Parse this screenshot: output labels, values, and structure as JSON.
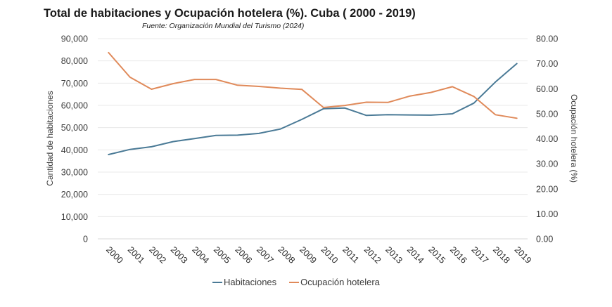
{
  "chart_data": {
    "type": "line",
    "title": "Total de habitaciones y Ocupación hotelera (%). Cuba (  2000 - 2019)",
    "subtitle": "Fuente: Organización Mundial del Turismo (2024)",
    "xlabel": "",
    "ylabel_left": "Cantidad de habitaciones",
    "ylabel_right": "Ocupación hotelera (%)",
    "x": [
      "2000",
      "2001",
      "2002",
      "2003",
      "2004",
      "2005",
      "2006",
      "2007",
      "2008",
      "2009",
      "2010",
      "2011",
      "2012",
      "2013",
      "2014",
      "2015",
      "2016",
      "2017",
      "2018",
      "2019"
    ],
    "ylim_left": [
      0,
      90000
    ],
    "ylim_right": [
      0,
      80
    ],
    "yticks_left": [
      "0",
      "10,000",
      "20,000",
      "30,000",
      "40,000",
      "50,000",
      "60,000",
      "70,000",
      "80,000",
      "90,000"
    ],
    "yticks_right": [
      "0.00",
      "10.00",
      "20.00",
      "30.00",
      "40.00",
      "50.00",
      "60.00",
      "70.00",
      "80.00"
    ],
    "grid": true,
    "legend_position": "bottom",
    "series": [
      {
        "name": "Habitaciones",
        "axis": "left",
        "color": "#4a7a96",
        "values": [
          37900,
          40200,
          41400,
          43700,
          45100,
          46500,
          46600,
          47400,
          49400,
          53700,
          58500,
          58800,
          55500,
          55800,
          55700,
          55600,
          56200,
          61000,
          70500,
          78800
        ]
      },
      {
        "name": "Ocupación hotelera",
        "axis": "right",
        "color": "#e08a5a",
        "values": [
          74.4,
          64.6,
          59.8,
          62.0,
          63.7,
          63.7,
          61.4,
          60.9,
          60.2,
          59.7,
          52.5,
          53.3,
          54.6,
          54.5,
          57.0,
          58.5,
          60.8,
          56.9,
          49.6,
          48.2
        ]
      }
    ]
  }
}
